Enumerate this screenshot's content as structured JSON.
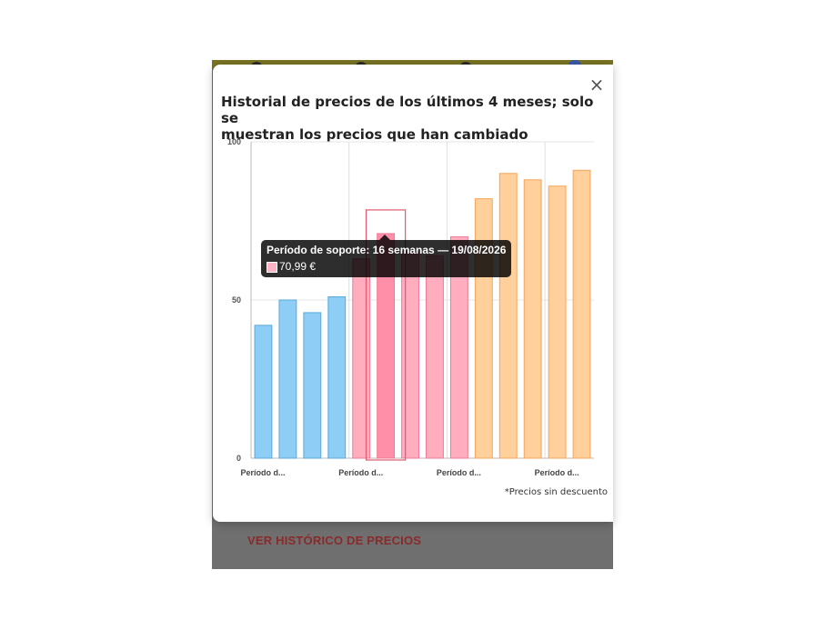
{
  "background": {
    "history_link": "VER HISTÓRICO DE PRECIOS"
  },
  "modal": {
    "title_line1": "Historial de precios de los últimos 4 meses; solo se",
    "title_line2": "muestran los precios que han cambiado",
    "close_icon": "×",
    "footnote": "*Precios sin descuento"
  },
  "tooltip": {
    "title": "Período de soporte: 16 semanas — 19/08/2026",
    "value": "70,99 €"
  },
  "chart_data": {
    "type": "bar",
    "title": "",
    "xlabel": "",
    "ylabel": "",
    "ylim": [
      0,
      100
    ],
    "yticks": [
      0,
      50,
      100
    ],
    "x_tick_labels": [
      "Período d...",
      "Período d...",
      "Período d...",
      "Período d..."
    ],
    "grid": true,
    "groups": [
      {
        "color": "#8ecdf5",
        "border": "#5aa9dc",
        "values": [
          42,
          50,
          46,
          51
        ]
      },
      {
        "color": "#ffadbf",
        "border": "#f07a95",
        "values": [
          63,
          71,
          65,
          64,
          70
        ]
      },
      {
        "color": "#ffcf9c",
        "border": "#f5a55a",
        "values": [
          82,
          90,
          88,
          86,
          91
        ]
      }
    ],
    "highlighted_index": 5
  }
}
